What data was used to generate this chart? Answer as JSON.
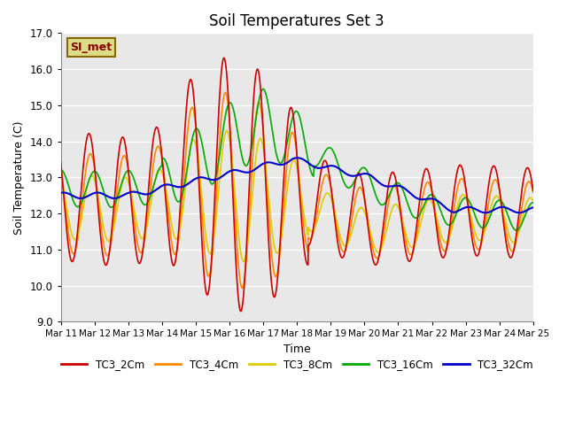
{
  "title": "Soil Temperatures Set 3",
  "xlabel": "Time",
  "ylabel": "Soil Temperature (C)",
  "ylim": [
    9.0,
    17.0
  ],
  "yticks": [
    9.0,
    10.0,
    11.0,
    12.0,
    13.0,
    14.0,
    15.0,
    16.0,
    17.0
  ],
  "xlim": [
    0,
    336
  ],
  "xtick_positions": [
    0,
    24,
    48,
    72,
    96,
    120,
    144,
    168,
    192,
    216,
    240,
    264,
    288,
    312,
    336
  ],
  "xtick_labels": [
    "Mar 11",
    "Mar 12",
    "Mar 13",
    "Mar 14",
    "Mar 15",
    "Mar 16",
    "Mar 17",
    "Mar 18",
    "Mar 19",
    "Mar 20",
    "Mar 21",
    "Mar 22",
    "Mar 23",
    "Mar 24",
    "Mar 25"
  ],
  "bg_color": "#e8e8e8",
  "fig_color": "#ffffff",
  "grid_color": "#ffffff",
  "series": {
    "TC3_2Cm": {
      "color": "#cc0000",
      "lw": 1.2
    },
    "TC3_4Cm": {
      "color": "#ff8800",
      "lw": 1.2
    },
    "TC3_8Cm": {
      "color": "#ddcc00",
      "lw": 1.2
    },
    "TC3_16Cm": {
      "color": "#00aa00",
      "lw": 1.2
    },
    "TC3_32Cm": {
      "color": "#0000cc",
      "lw": 1.5
    }
  },
  "si_met_label": "SI_met",
  "si_met_bg": "#dddd88",
  "si_met_border": "#886600",
  "si_met_text_color": "#880000"
}
